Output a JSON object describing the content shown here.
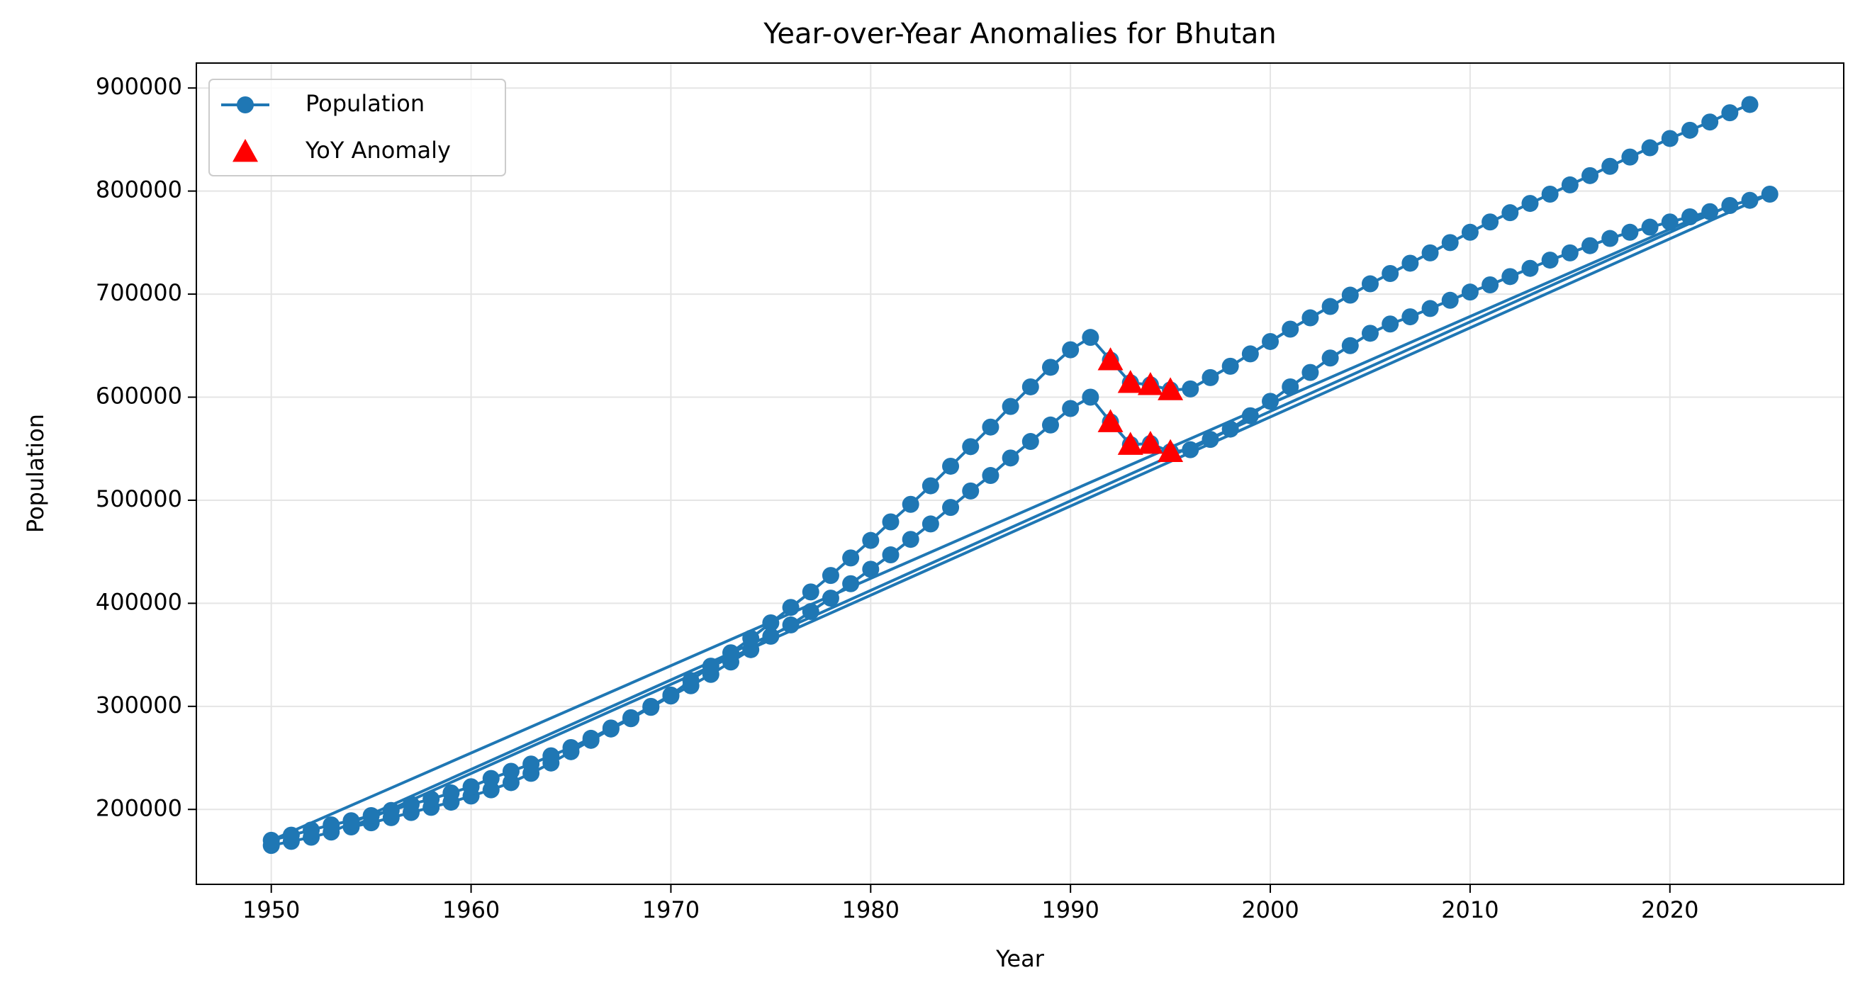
{
  "chart_data": {
    "type": "line",
    "title": "Year-over-Year Anomalies for Bhutan",
    "xlabel": "Year",
    "ylabel": "Population",
    "legend": "upper left",
    "grid": true,
    "xlim": [
      1946.25,
      2028.7
    ],
    "ylim": [
      127300,
      924200
    ],
    "xticks": [
      1950,
      1960,
      1970,
      1980,
      1990,
      2000,
      2010,
      2020
    ],
    "yticks": [
      200000,
      300000,
      400000,
      500000,
      600000,
      700000,
      800000,
      900000
    ],
    "series": [
      {
        "name": "Population",
        "color": "#1f77b4",
        "marker": "o",
        "x": [
          1950,
          1951,
          1952,
          1953,
          2023,
          2024,
          2025,
          1954,
          1955,
          1956,
          1957,
          1958,
          1959,
          1960,
          1961,
          1962,
          1963,
          1964,
          1965,
          1966,
          1967,
          1968,
          1969,
          1970,
          1971,
          1972,
          1973,
          1974,
          1975,
          1976,
          1977,
          1978,
          1979,
          1980,
          1981,
          1982,
          1983,
          1984,
          1985,
          1986,
          1987,
          1988,
          1989,
          1990,
          1991,
          1992,
          1993,
          1994,
          1995,
          1996,
          1997,
          1998,
          1999,
          2000,
          2001,
          2002,
          2003,
          2004,
          2005,
          2006,
          2007,
          2008,
          2009,
          2010,
          2011,
          2012,
          2013,
          2014,
          2015,
          2016,
          2017,
          2018,
          2019,
          2020,
          2021,
          2022,
          1950,
          1951,
          1952,
          1953,
          1954,
          1955,
          1956,
          1957,
          1958,
          1959,
          1960,
          1961,
          1962,
          1963,
          1964,
          1965,
          1966,
          1967,
          1968,
          1969,
          1970,
          1971,
          1972,
          1973,
          1974,
          1975,
          1976,
          1977,
          1978,
          1979,
          1980,
          1981,
          1982,
          1983,
          1984,
          1985,
          1986,
          1987,
          1988,
          1989,
          1990,
          1991,
          1992,
          1993,
          1994,
          1995,
          1996,
          1997,
          1998,
          1999,
          2000,
          2001,
          2002,
          2003,
          2004,
          2005,
          2006,
          2007,
          2008,
          2009,
          2010,
          2011,
          2012,
          2013,
          2014,
          2015,
          2016,
          2017,
          2018,
          2019,
          2020,
          2021,
          2022,
          2023,
          2024
        ],
        "values": [
          165000,
          169000,
          173000,
          178000,
          786000,
          791000,
          797000,
          183000,
          187000,
          192000,
          197000,
          202000,
          207000,
          213000,
          219000,
          226000,
          235000,
          245000,
          256000,
          267000,
          278000,
          288000,
          299000,
          310000,
          320000,
          331000,
          343000,
          355000,
          368000,
          379000,
          392000,
          405000,
          419000,
          433000,
          447000,
          462000,
          477000,
          493000,
          509000,
          524000,
          541000,
          557000,
          573000,
          589000,
          600000,
          576000,
          554000,
          555000,
          547000,
          549000,
          559000,
          569000,
          582000,
          596000,
          610000,
          624000,
          638000,
          650000,
          662000,
          671000,
          678000,
          686000,
          694000,
          702000,
          709000,
          717000,
          725000,
          733000,
          740000,
          747000,
          754000,
          760000,
          765000,
          770000,
          775000,
          780000,
          170000,
          175000,
          180000,
          185000,
          189000,
          194000,
          199000,
          205000,
          210000,
          216000,
          222000,
          230000,
          237000,
          244000,
          252000,
          260000,
          269000,
          279000,
          289000,
          300000,
          311000,
          325000,
          339000,
          352000,
          366000,
          381000,
          396000,
          411000,
          427000,
          444000,
          461000,
          479000,
          496000,
          514000,
          533000,
          552000,
          571000,
          591000,
          610000,
          629000,
          646000,
          658000,
          636000,
          614000,
          612000,
          607000,
          608000,
          619000,
          630000,
          642000,
          654000,
          666000,
          677000,
          688000,
          699000,
          710000,
          720000,
          730000,
          740000,
          750000,
          760000,
          770000,
          779000,
          788000,
          797000,
          806000,
          815000,
          824000,
          833000,
          842000,
          851000,
          859000,
          867000,
          876000,
          884000
        ]
      },
      {
        "name": "YoY Anomaly",
        "color": "#ff0000",
        "type": "scatter",
        "marker": "^",
        "x": [
          1992,
          1993,
          1994,
          1995,
          1992,
          1993,
          1994,
          1995
        ],
        "values": [
          636000,
          614000,
          612000,
          607000,
          576000,
          554000,
          555000,
          547000
        ]
      }
    ]
  }
}
